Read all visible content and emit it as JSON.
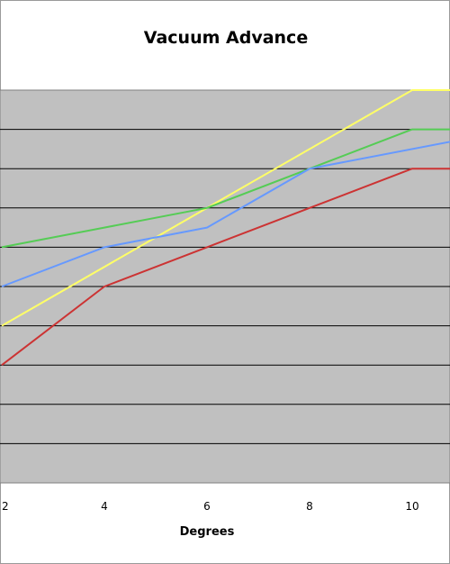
{
  "chart_data": {
    "type": "line",
    "title": "Vacuum Advance",
    "xlabel": "Degrees",
    "ylabel": "",
    "xlim": [
      2,
      10.8
    ],
    "ylim": [
      0,
      10
    ],
    "x_ticks": [
      2,
      4,
      6,
      8,
      10
    ],
    "grid": true,
    "series": [
      {
        "color": "#ffff66",
        "points": [
          [
            2,
            4
          ],
          [
            10,
            10
          ],
          [
            10.8,
            10
          ]
        ]
      },
      {
        "color": "#55cc55",
        "points": [
          [
            2,
            6
          ],
          [
            6,
            7
          ],
          [
            8,
            8
          ],
          [
            10,
            9
          ],
          [
            10.8,
            9
          ]
        ]
      },
      {
        "color": "#6699ff",
        "points": [
          [
            2,
            5
          ],
          [
            4,
            6
          ],
          [
            6,
            6.5
          ],
          [
            8,
            8
          ],
          [
            10.8,
            8.7
          ]
        ]
      },
      {
        "color": "#cc3333",
        "points": [
          [
            2,
            3
          ],
          [
            4,
            5
          ],
          [
            6,
            6
          ],
          [
            8,
            7
          ],
          [
            10,
            8
          ],
          [
            10.8,
            8
          ]
        ]
      }
    ]
  }
}
